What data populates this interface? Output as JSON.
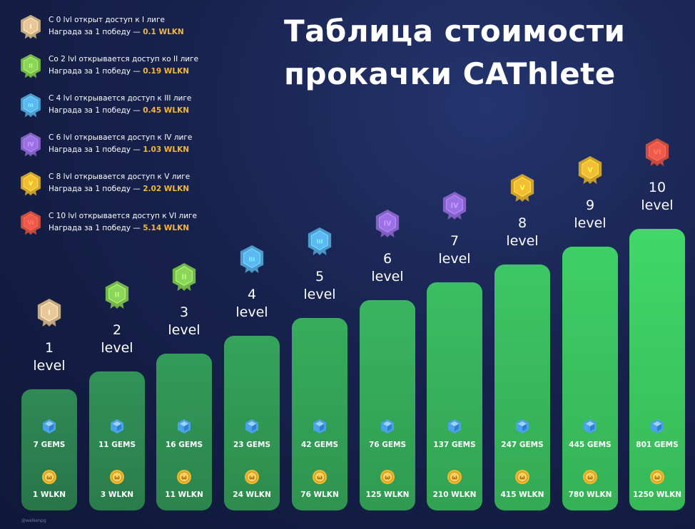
{
  "title": "Таблица стоимости\nпрокачки CAThlete",
  "legend": [
    {
      "numeral": "I",
      "color": "#e8c89a",
      "line1": "С 0 lvl открыт доступ к I лиге",
      "reward_prefix": "Награда за 1 победу — ",
      "reward": "0.1 WLKN"
    },
    {
      "numeral": "II",
      "color": "#8bd65a",
      "line1": "Со 2 lvl открывается доступ ко II лиге",
      "reward_prefix": "Награда за 1 победу — ",
      "reward": "0.19 WLKN"
    },
    {
      "numeral": "III",
      "color": "#5cb8f2",
      "line1": "С 4 lvl открывается доступ к III лиге",
      "reward_prefix": "Награда за 1 победу — ",
      "reward": "0.45 WLKN"
    },
    {
      "numeral": "IV",
      "color": "#9b72e6",
      "line1": "С 6 lvl открывается доступ к IV лиге",
      "reward_prefix": "Награда за 1 победу — ",
      "reward": "1.03 WLKN"
    },
    {
      "numeral": "V",
      "color": "#f3be35",
      "line1": "С 8 lvl открывается доступ к V лиге",
      "reward_prefix": "Награда за 1 победу — ",
      "reward": "2.02 WLKN"
    },
    {
      "numeral": "VI",
      "color": "#ef5a4a",
      "line1": "С 10 lvl открывается доступ к VI лиге",
      "reward_prefix": "Награда за 1 победу — ",
      "reward": "5.14 WLKN"
    }
  ],
  "chart_data": {
    "type": "bar",
    "categories": [
      "1 level",
      "2 level",
      "3 level",
      "4 level",
      "5 level",
      "6 level",
      "7 level",
      "8 level",
      "9 level",
      "10 level"
    ],
    "series": [
      {
        "name": "GEMS",
        "values": [
          7,
          11,
          16,
          23,
          42,
          76,
          137,
          247,
          445,
          801
        ]
      },
      {
        "name": "WLKN",
        "values": [
          1,
          3,
          11,
          24,
          76,
          125,
          210,
          415,
          780,
          1250
        ]
      }
    ],
    "league_badges": [
      "I",
      "II",
      "II",
      "III",
      "III",
      "IV",
      "IV",
      "V",
      "V",
      "VI"
    ]
  },
  "columns": [
    {
      "num": "1",
      "word": "level",
      "gems": "7 GEMS",
      "wlkn": "1 WLKN"
    },
    {
      "num": "2",
      "word": "level",
      "gems": "11 GEMS",
      "wlkn": "3 WLKN"
    },
    {
      "num": "3",
      "word": "level",
      "gems": "16 GEMS",
      "wlkn": "11 WLKN"
    },
    {
      "num": "4",
      "word": "level",
      "gems": "23 GEMS",
      "wlkn": "24 WLKN"
    },
    {
      "num": "5",
      "word": "level",
      "gems": "42 GEMS",
      "wlkn": "76 WLKN"
    },
    {
      "num": "6",
      "word": "level",
      "gems": "76 GEMS",
      "wlkn": "125 WLKN"
    },
    {
      "num": "7",
      "word": "level",
      "gems": "137 GEMS",
      "wlkn": "210 WLKN"
    },
    {
      "num": "8",
      "word": "level",
      "gems": "247 GEMS",
      "wlkn": "415 WLKN"
    },
    {
      "num": "9",
      "word": "level",
      "gems": "445 GEMS",
      "wlkn": "780 WLKN"
    },
    {
      "num": "10",
      "word": "level",
      "gems": "801 GEMS",
      "wlkn": "1250 WLKN"
    }
  ],
  "colors": {
    "bar_start": "#2f8a55",
    "bar_end": "#41d868",
    "gem": "#4aa3e8",
    "coin": "#f2b92e"
  },
  "footnote": "@walkenpg"
}
